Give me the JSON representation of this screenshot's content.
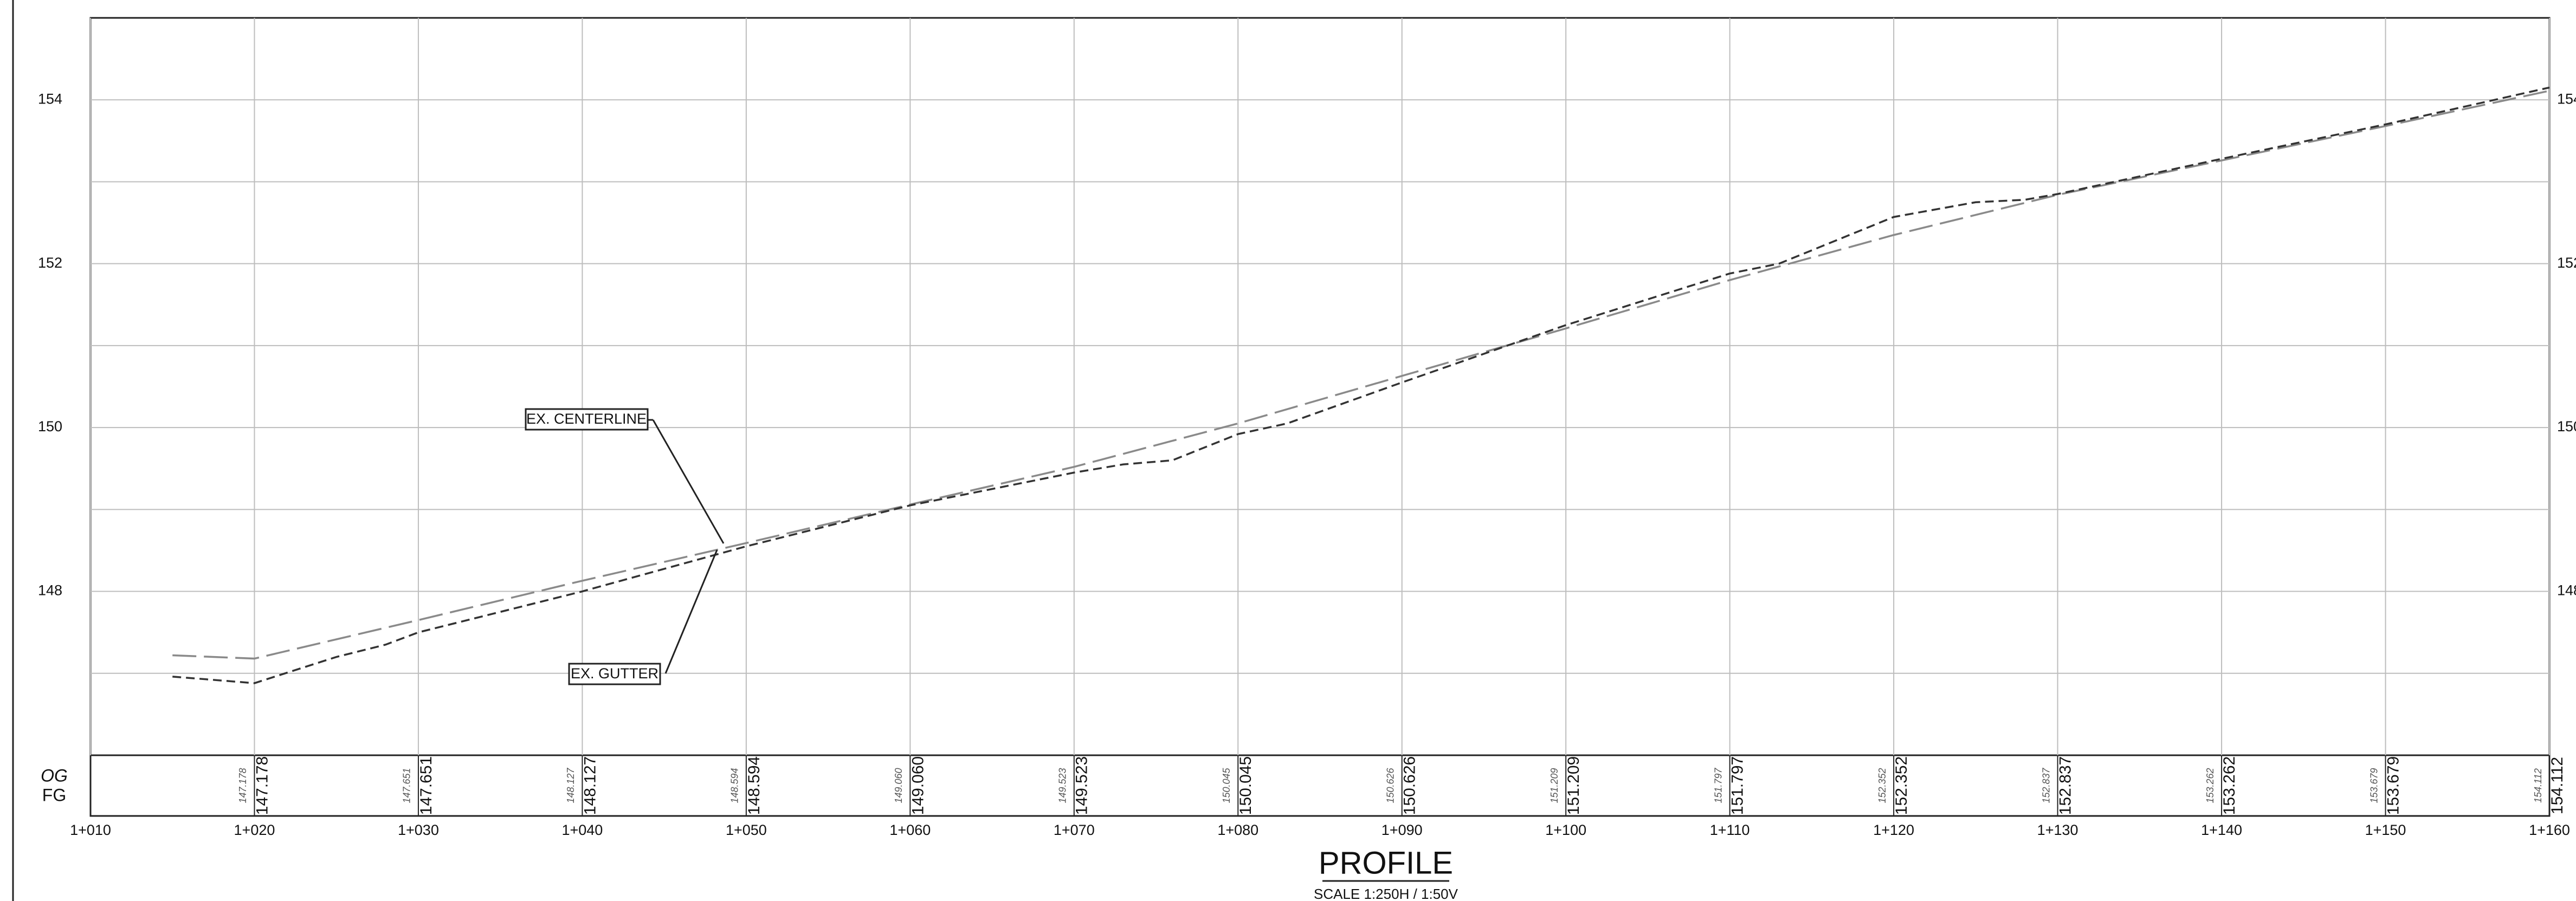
{
  "chart_data": {
    "type": "line",
    "title": "PROFILE",
    "subtitle": "SCALE 1:250H / 1:50V",
    "xlim": [
      1010,
      1160
    ],
    "xticks": [
      {
        "value": 1010,
        "label": "1+010"
      },
      {
        "value": 1020,
        "label": "1+020"
      },
      {
        "value": 1030,
        "label": "1+030"
      },
      {
        "value": 1040,
        "label": "1+040"
      },
      {
        "value": 1050,
        "label": "1+050"
      },
      {
        "value": 1060,
        "label": "1+060"
      },
      {
        "value": 1070,
        "label": "1+070"
      },
      {
        "value": 1080,
        "label": "1+080"
      },
      {
        "value": 1090,
        "label": "1+090"
      },
      {
        "value": 1100,
        "label": "1+100"
      },
      {
        "value": 1110,
        "label": "1+110"
      },
      {
        "value": 1120,
        "label": "1+120"
      },
      {
        "value": 1130,
        "label": "1+130"
      },
      {
        "value": 1140,
        "label": "1+140"
      },
      {
        "value": 1150,
        "label": "1+150"
      },
      {
        "value": 1160,
        "label": "1+160"
      }
    ],
    "ylim": [
      146,
      155
    ],
    "yticks": [
      148,
      150,
      152,
      154
    ],
    "grid": true,
    "series": [
      {
        "name": "EX. CENTERLINE",
        "color": "#8a8a8a",
        "dash": "long",
        "x": [
          1015,
          1020,
          1030,
          1040,
          1050,
          1060,
          1070,
          1080,
          1090,
          1100,
          1110,
          1120,
          1130,
          1140,
          1150,
          1160
        ],
        "values": [
          147.22,
          147.18,
          147.65,
          148.13,
          148.59,
          149.06,
          149.52,
          150.05,
          150.63,
          151.21,
          151.8,
          152.35,
          152.84,
          153.26,
          153.68,
          154.11
        ]
      },
      {
        "name": "EX. GUTTER",
        "color": "#333333",
        "dash": "short",
        "x": [
          1015,
          1020,
          1025,
          1028,
          1030,
          1040,
          1050,
          1060,
          1070,
          1073,
          1076,
          1080,
          1083,
          1090,
          1100,
          1110,
          1113,
          1120,
          1125,
          1128,
          1130,
          1140,
          1150,
          1160
        ],
        "values": [
          146.96,
          146.88,
          147.2,
          147.35,
          147.5,
          148.0,
          148.55,
          149.05,
          149.45,
          149.55,
          149.6,
          149.92,
          150.05,
          150.55,
          151.25,
          151.88,
          152.0,
          152.57,
          152.75,
          152.78,
          152.85,
          153.28,
          153.7,
          154.15
        ]
      }
    ],
    "table": {
      "row_labels": [
        "OG",
        "FG"
      ],
      "og": [
        "147.178",
        "147.651",
        "148.127",
        "148.594",
        "149.060",
        "149.523",
        "150.045",
        "150.626",
        "151.209",
        "151.797",
        "152.352",
        "152.837",
        "153.262",
        "153.679",
        "154.112"
      ],
      "fg": [
        "147.178",
        "147.651",
        "148.127",
        "148.594",
        "149.060",
        "149.523",
        "150.045",
        "150.626",
        "151.209",
        "151.797",
        "152.352",
        "152.837",
        "153.262",
        "153.679",
        "154.112"
      ]
    }
  }
}
